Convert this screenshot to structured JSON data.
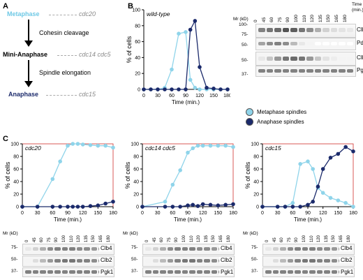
{
  "panelA": {
    "letter": "A",
    "stages": [
      {
        "name": "Metaphase",
        "gene": "cdc20",
        "color": "#6fc9e6"
      },
      {
        "name": "Mini-Anaphase",
        "gene": "cdc14 cdc5",
        "color": "#000000"
      },
      {
        "name": "Anaphase",
        "gene": "cdc15",
        "color": "#1b2a6b"
      }
    ],
    "arrows": [
      "Cohesin cleavage",
      "Spindle elongation"
    ]
  },
  "panelB": {
    "letter": "B",
    "blot": {
      "mw_header": "Mr (kD)",
      "time_header": "Time (min.)",
      "times": [
        "0",
        "45",
        "60",
        "75",
        "90",
        "100",
        "110",
        "120",
        "135",
        "150",
        "165",
        "180"
      ],
      "rows": [
        {
          "label": "Clb4",
          "markers": [
            "100-",
            "75-"
          ]
        },
        {
          "label": "Pds1",
          "markers": [
            "50-"
          ]
        },
        {
          "label": "Clb2",
          "markers": [
            "50-"
          ]
        },
        {
          "label": "Pgk1",
          "markers": [
            "37-"
          ]
        }
      ]
    },
    "legend": [
      "Metaphase spindles",
      "Anaphase spindles"
    ]
  },
  "panelC": {
    "letter": "C",
    "blot_mw_header": "Mr (kD)",
    "blot_rows": [
      {
        "label": "Clb4",
        "markers": [
          "75-"
        ]
      },
      {
        "label": "Clb2",
        "markers": [
          "50-"
        ]
      },
      {
        "label": "Pgk1",
        "markers": [
          "37-"
        ]
      }
    ]
  },
  "colors": {
    "metaphase": "#8fd4ea",
    "anaphase": "#1b2a6b",
    "axis": "#000000",
    "redframe": "#d0312d"
  },
  "chart_data": [
    {
      "type": "line",
      "title": "wild-type",
      "xlabel": "Time (min.)",
      "ylabel": "% of cells",
      "xlim": [
        0,
        180
      ],
      "ylim": [
        0,
        100
      ],
      "xticks": [
        0,
        30,
        60,
        90,
        120,
        150,
        180
      ],
      "yticks": [
        0,
        20,
        40,
        60,
        80,
        100
      ],
      "series": [
        {
          "name": "Metaphase spindles",
          "x": [
            0,
            15,
            30,
            45,
            60,
            75,
            90,
            100,
            110,
            120,
            135,
            150,
            165,
            180
          ],
          "y": [
            0,
            0,
            0,
            2,
            25,
            70,
            72,
            12,
            2,
            0,
            0,
            0,
            0,
            0
          ]
        },
        {
          "name": "Anaphase spindles",
          "x": [
            0,
            15,
            30,
            45,
            60,
            75,
            90,
            100,
            110,
            120,
            135,
            150,
            165,
            180
          ],
          "y": [
            0,
            0,
            0,
            0,
            0,
            0,
            0,
            75,
            86,
            28,
            2,
            1,
            0,
            0
          ]
        }
      ]
    },
    {
      "type": "line",
      "title": "cdc20",
      "xlabel": "Time (min.)",
      "ylabel": "% of cells",
      "xlim": [
        0,
        180
      ],
      "ylim": [
        0,
        100
      ],
      "xticks": [
        0,
        30,
        60,
        90,
        120,
        150,
        180
      ],
      "yticks": [
        0,
        20,
        40,
        60,
        80,
        100
      ],
      "series": [
        {
          "name": "Metaphase spindles",
          "x": [
            0,
            30,
            60,
            75,
            90,
            100,
            110,
            120,
            135,
            150,
            165,
            180
          ],
          "y": [
            0,
            0,
            44,
            72,
            97,
            100,
            100,
            99,
            98,
            97,
            97,
            94
          ]
        },
        {
          "name": "Anaphase spindles",
          "x": [
            0,
            30,
            60,
            75,
            90,
            100,
            110,
            120,
            135,
            150,
            165,
            180
          ],
          "y": [
            0,
            0,
            0,
            0,
            0,
            0,
            0,
            0,
            1,
            2,
            5,
            8
          ]
        }
      ]
    },
    {
      "type": "line",
      "title": "cdc14 cdc5",
      "xlabel": "Time (min.)",
      "ylabel": "% of cells",
      "xlim": [
        0,
        180
      ],
      "ylim": [
        0,
        100
      ],
      "xticks": [
        0,
        30,
        60,
        90,
        120,
        150,
        180
      ],
      "yticks": [
        0,
        20,
        40,
        60,
        80,
        100
      ],
      "series": [
        {
          "name": "Metaphase spindles",
          "x": [
            0,
            45,
            60,
            75,
            90,
            100,
            110,
            120,
            135,
            150,
            165,
            180
          ],
          "y": [
            0,
            8,
            35,
            58,
            86,
            93,
            97,
            97,
            97,
            97,
            97,
            95
          ]
        },
        {
          "name": "Anaphase spindles",
          "x": [
            0,
            45,
            60,
            75,
            90,
            100,
            110,
            120,
            135,
            150,
            165,
            180
          ],
          "y": [
            0,
            0,
            0,
            0,
            2,
            3,
            1,
            4,
            3,
            2,
            3,
            4
          ]
        }
      ]
    },
    {
      "type": "line",
      "title": "cdc15",
      "xlabel": "Time (min.)",
      "ylabel": "% of cells",
      "xlim": [
        0,
        180
      ],
      "ylim": [
        0,
        100
      ],
      "xticks": [
        0,
        30,
        60,
        90,
        120,
        150,
        180
      ],
      "yticks": [
        0,
        20,
        40,
        60,
        80,
        100
      ],
      "series": [
        {
          "name": "Metaphase spindles",
          "x": [
            0,
            30,
            45,
            60,
            75,
            90,
            100,
            110,
            120,
            135,
            150,
            165,
            180
          ],
          "y": [
            0,
            0,
            0,
            6,
            68,
            72,
            60,
            30,
            22,
            14,
            10,
            6,
            0
          ]
        },
        {
          "name": "Anaphase spindles",
          "x": [
            0,
            30,
            45,
            60,
            75,
            90,
            100,
            110,
            120,
            135,
            150,
            165,
            180
          ],
          "y": [
            0,
            0,
            0,
            0,
            0,
            3,
            8,
            32,
            60,
            78,
            84,
            95,
            88
          ]
        }
      ]
    }
  ]
}
